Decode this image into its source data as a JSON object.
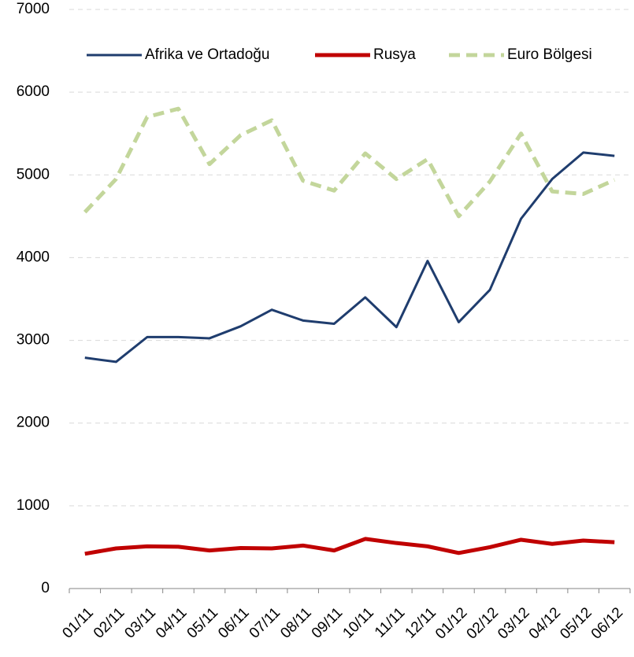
{
  "chart_data": {
    "type": "line",
    "categories": [
      "01/11",
      "02/11",
      "03/11",
      "04/11",
      "05/11",
      "06/11",
      "07/11",
      "08/11",
      "09/11",
      "10/11",
      "11/11",
      "12/11",
      "01/12",
      "02/12",
      "03/12",
      "04/12",
      "05/12",
      "06/12"
    ],
    "series": [
      {
        "name": "Afrika ve Ortadoğu",
        "color": "#1f3d6e",
        "dash": false,
        "width": 3,
        "values": [
          2790,
          2740,
          3040,
          3040,
          3025,
          3170,
          3370,
          3240,
          3200,
          3520,
          3160,
          3960,
          3220,
          3610,
          4470,
          4950,
          5270,
          5230
        ]
      },
      {
        "name": "Rusya",
        "color": "#c00000",
        "dash": false,
        "width": 5,
        "values": [
          420,
          485,
          510,
          505,
          460,
          490,
          485,
          520,
          460,
          600,
          550,
          510,
          430,
          500,
          590,
          540,
          580,
          560
        ]
      },
      {
        "name": "Euro Bölgesi",
        "color": "#c3d69b",
        "dash": true,
        "width": 5,
        "values": [
          4550,
          4950,
          5700,
          5800,
          5130,
          5480,
          5660,
          4930,
          4810,
          5260,
          4950,
          5190,
          4500,
          4920,
          5500,
          4800,
          4770,
          4940
        ]
      }
    ],
    "ylim": [
      0,
      7000
    ],
    "yticks": [
      0,
      1000,
      2000,
      3000,
      4000,
      5000,
      6000,
      7000
    ],
    "grid": true
  }
}
